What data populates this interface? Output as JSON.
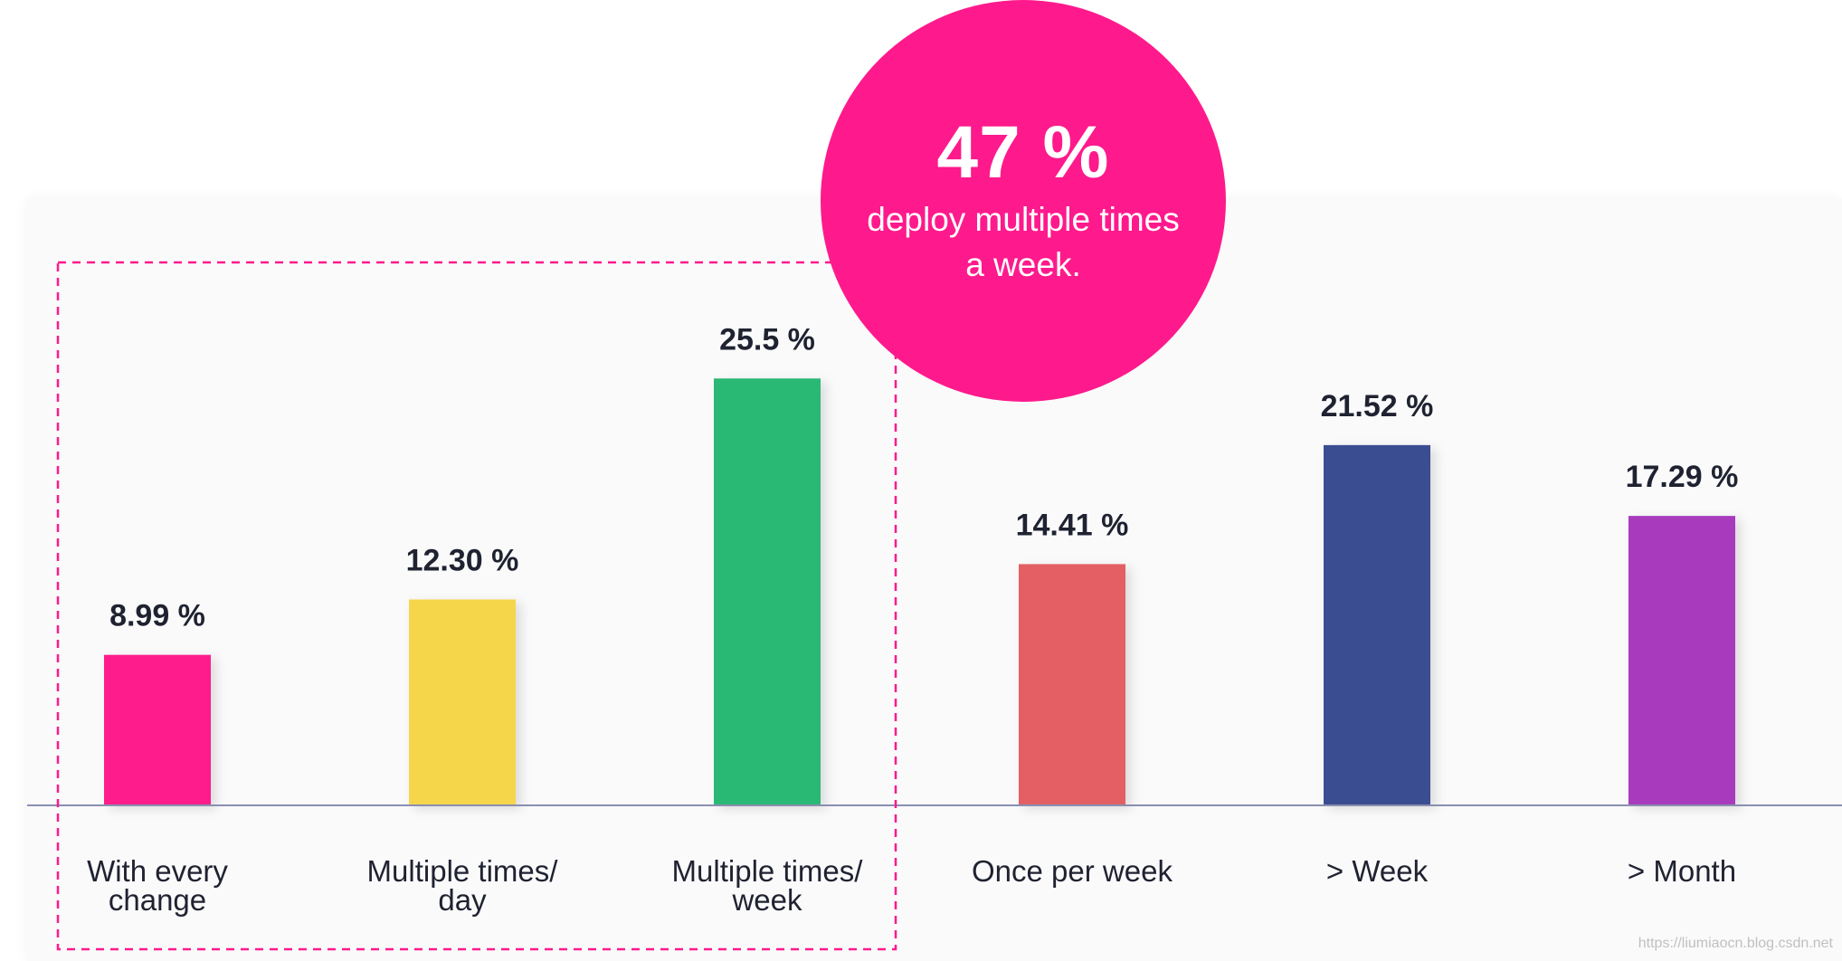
{
  "chart_data": {
    "type": "bar",
    "categories": [
      [
        "With every",
        "change"
      ],
      [
        "Multiple times/",
        "day"
      ],
      [
        "Multiple times/",
        "week"
      ],
      [
        "Once per week"
      ],
      [
        "> Week"
      ],
      [
        "> Month"
      ]
    ],
    "values": [
      8.99,
      12.3,
      25.5,
      14.41,
      21.52,
      17.29
    ],
    "value_labels": [
      "8.99 %",
      "12.30 %",
      "25.5 %",
      "14.41 %",
      "21.52 %",
      "17.29 %"
    ],
    "colors": [
      "#fe1a8c",
      "#f5d64c",
      "#2bb975",
      "#e35e63",
      "#3b4d91",
      "#a83bbd"
    ],
    "ylim": [
      0,
      30
    ],
    "title": "",
    "xlabel": "",
    "ylabel": "",
    "highlight": {
      "categories_indices": [
        0,
        1,
        2
      ],
      "style": "dashed-box",
      "color": "#fe1a8c"
    },
    "grid": false
  },
  "callout": {
    "percent": "47 %",
    "text": "deploy multiple times a week.",
    "color": "#fe1a8c"
  },
  "axis_color": "#8a8fb0",
  "watermark": "https://liumiaocn.blog.csdn.net"
}
